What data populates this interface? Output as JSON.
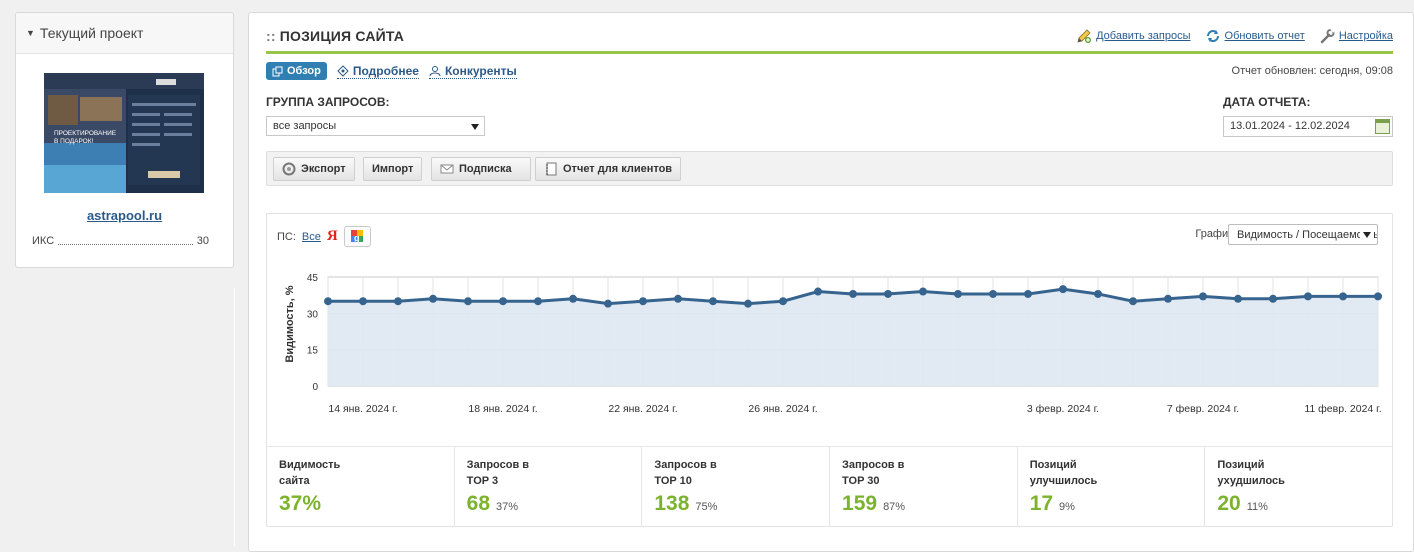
{
  "left_panel": {
    "header": "Текущий проект",
    "site": "astrapool.ru",
    "iks_label": "ИКС",
    "iks_value": "30",
    "thumbnail": {
      "headline_1": "ПРОЕКТИРОВАНИЕ",
      "headline_2": "В ПОДАРОК!"
    }
  },
  "main": {
    "title_prefix": "::",
    "title": "ПОЗИЦИЯ САЙТА",
    "links": {
      "add": "Добавить запросы",
      "refresh": "Обновить отчет",
      "settings": "Настройка"
    },
    "tabs": {
      "overview": "Обзор",
      "details": "Подробнее",
      "competitors": "Конкуренты"
    },
    "updated": "Отчет обновлен: сегодня, 09:08",
    "group_label": "ГРУППА ЗАПРОСОВ:",
    "group_value": "все запросы",
    "date_label": "ДАТА ОТЧЕТА:",
    "date_value": "13.01.2024 - 12.02.2024",
    "toolbar": {
      "export": "Экспорт",
      "import": "Импорт",
      "subscribe": "Подписка",
      "client_report": "Отчет для клиентов"
    },
    "ps_label": "ПС:",
    "ps_all": "Все",
    "ps_yandex": "Я",
    "graph_label": "График:",
    "graph_value": "Видимость / Посещаемость"
  },
  "colors": {
    "accent_green": "#97c545",
    "link_blue": "#2a5a8a",
    "tab_blue": "#2f7fb3",
    "line": "#36648f",
    "area": "#dfe8f1",
    "stat_green": "#7cb32c",
    "yandex_red": "#e0261b"
  },
  "chart_data": {
    "type": "area",
    "ylabel": "Видимость, %",
    "ylim": [
      0,
      45
    ],
    "yticks": [
      0,
      15,
      30,
      45
    ],
    "x_start": "2024-01-13",
    "xtick_labels": [
      {
        "day_index": 1,
        "label": "14 янв. 2024 г."
      },
      {
        "day_index": 5,
        "label": "18 янв. 2024 г."
      },
      {
        "day_index": 9,
        "label": "22 янв. 2024 г."
      },
      {
        "day_index": 13,
        "label": "26 янв. 2024 г."
      },
      {
        "day_index": 21,
        "label": "3 февр. 2024 г."
      },
      {
        "day_index": 25,
        "label": "7 февр. 2024 г."
      },
      {
        "day_index": 29,
        "label": "11 февр. 2024 г."
      }
    ],
    "series": [
      {
        "values": [
          35,
          35,
          35,
          36,
          35,
          35,
          35,
          36,
          34,
          35,
          36,
          35,
          34,
          35,
          39,
          38,
          38,
          39,
          38,
          38,
          38,
          40,
          38,
          35,
          36,
          37,
          36,
          36,
          37,
          37,
          37
        ]
      }
    ],
    "grid": true
  },
  "stats": [
    {
      "label": "Видимость сайта",
      "value": "37%",
      "pct": ""
    },
    {
      "label": "Запросов в TOP 3",
      "value": "68",
      "pct": "37%"
    },
    {
      "label": "Запросов в TOP 10",
      "value": "138",
      "pct": "75%"
    },
    {
      "label": "Запросов в TOP 30",
      "value": "159",
      "pct": "87%"
    },
    {
      "label": "Позиций улучшилось",
      "value": "17",
      "pct": "9%"
    },
    {
      "label": "Позиций ухудшилось",
      "value": "20",
      "pct": "11%"
    }
  ]
}
